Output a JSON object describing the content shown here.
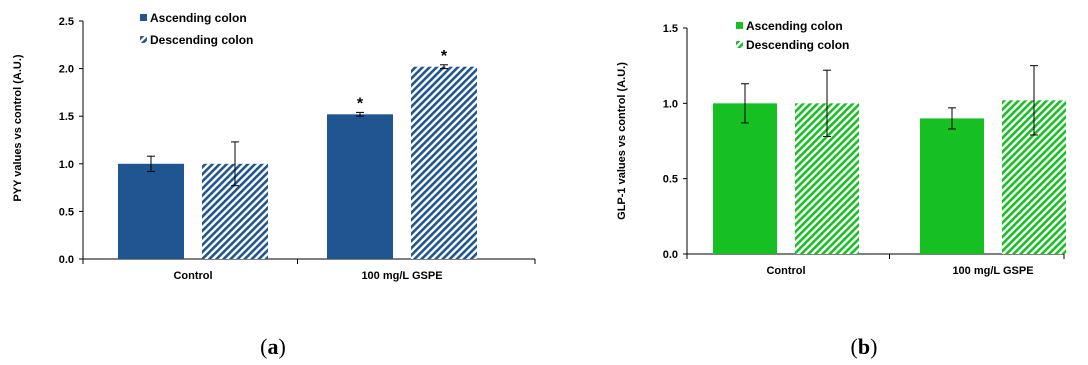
{
  "chart_data": [
    {
      "type": "bar",
      "panel_label": "a",
      "ylabel": "PYY values vs control (A.U.)",
      "ylim": [
        0,
        2.5
      ],
      "yticks": [
        "0.0",
        "0.5",
        "1.0",
        "1.5",
        "2.0",
        "2.5"
      ],
      "ytick_values": [
        0,
        0.5,
        1.0,
        1.5,
        2.0,
        2.5
      ],
      "categories": [
        "Control",
        "100 mg/L GSPE"
      ],
      "legend_position": "top-left",
      "series": [
        {
          "name": "Ascending colon",
          "fill": "solid",
          "color": "#1f5591",
          "values": [
            1.0,
            1.52
          ],
          "errors": [
            0.08,
            0.02
          ],
          "significance": [
            "",
            "*"
          ]
        },
        {
          "name": "Descending colon",
          "fill": "hatched",
          "color": "#1f5591",
          "values": [
            1.0,
            2.02
          ],
          "errors": [
            0.23,
            0.02
          ],
          "significance": [
            "",
            "*"
          ]
        }
      ]
    },
    {
      "type": "bar",
      "panel_label": "b",
      "ylabel": "GLP-1 values vs control (A.U.)",
      "ylim": [
        0,
        1.5
      ],
      "yticks": [
        "0.0",
        "0.5",
        "1.0",
        "1.5"
      ],
      "ytick_values": [
        0,
        0.5,
        1.0,
        1.5
      ],
      "categories": [
        "Control",
        "100 mg/L GSPE"
      ],
      "legend_position": "top-left",
      "series": [
        {
          "name": "Ascending colon",
          "fill": "solid",
          "color": "#17c022",
          "values": [
            1.0,
            0.9
          ],
          "errors": [
            0.13,
            0.07
          ],
          "significance": [
            "",
            ""
          ]
        },
        {
          "name": "Descending colon",
          "fill": "hatched",
          "color": "#17c022",
          "values": [
            1.0,
            1.02
          ],
          "errors": [
            0.22,
            0.23
          ],
          "significance": [
            "",
            ""
          ]
        }
      ]
    }
  ]
}
